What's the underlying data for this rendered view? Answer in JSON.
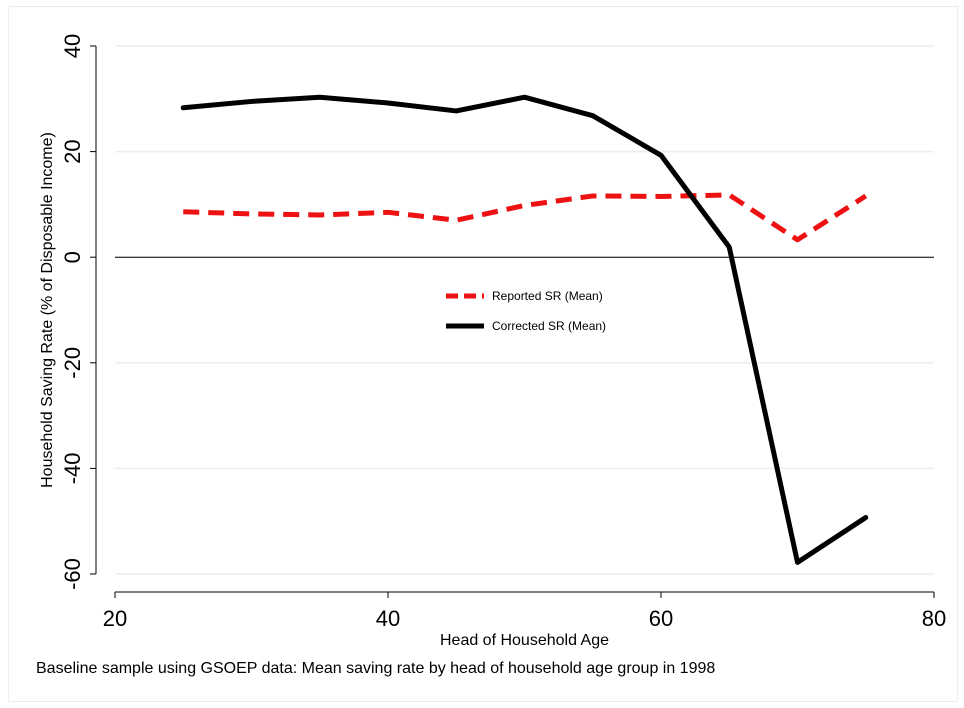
{
  "chart_data": {
    "type": "line",
    "title": "",
    "xlabel": "Head of Household Age",
    "ylabel": "Household Saving Rate (% of Disposable Income)",
    "note": "Baseline sample using GSOEP data: Mean saving rate by head of household age group in 1998",
    "xlim": [
      20,
      80
    ],
    "ylim": [
      -60,
      40
    ],
    "xticks": [
      20,
      40,
      60,
      80
    ],
    "yticks": [
      -60,
      -40,
      -20,
      0,
      20,
      40
    ],
    "grid": true,
    "reference_line_y": 0,
    "legend_position": "center",
    "x": [
      25,
      30,
      35,
      40,
      45,
      50,
      55,
      60,
      65,
      70,
      75
    ],
    "series": [
      {
        "name": "Reported SR (Mean)",
        "values": [
          8.6,
          8.2,
          8.0,
          8.5,
          7.0,
          9.8,
          11.6,
          11.5,
          11.8,
          3.3,
          11.6
        ],
        "color": "#ee1111",
        "style": "dashed"
      },
      {
        "name": "Corrected SR (Mean)",
        "values": [
          28.3,
          29.5,
          30.3,
          29.2,
          27.7,
          30.3,
          26.8,
          19.3,
          1.9,
          -57.8,
          -49.3
        ],
        "color": "#000000",
        "style": "solid"
      }
    ]
  }
}
